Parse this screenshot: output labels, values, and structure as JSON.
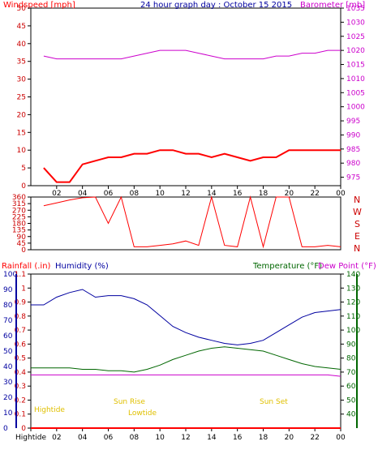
{
  "header": {
    "windspeed_label": "Windspeed [mph]",
    "title": "24 hour graph day : October 15 2015",
    "barometer_label": "Barometer [mb]"
  },
  "lower_header": {
    "rainfall_label": "Rainfall (.in)",
    "humidity_label": "Humidity (%)",
    "temperature_label": "Temperature (°F)",
    "dewpoint_label": "Dew Point (°F)"
  },
  "direction_letters": [
    "N",
    "W",
    "S",
    "E",
    "N"
  ],
  "annotations": {
    "hightide_label": "Hightide",
    "sunrise_label": "Sun Rise",
    "lowtide_label": "Lowtide",
    "sunset_label": "Sun Set"
  },
  "colors": {
    "windspeed": "#ff0000",
    "avg_wind": "#0000a0",
    "wind_low": "#008000",
    "barometer": "#cc00cc",
    "humidity": "#0000a0",
    "temperature": "#006600",
    "dewpoint": "#cc00cc",
    "rainfall": "#ff0000",
    "annotation": "#e0c000"
  },
  "chart_data": [
    {
      "type": "line",
      "name": "wind-barometer",
      "x_tick_labels": [
        "02",
        "04",
        "06",
        "08",
        "10",
        "12",
        "14",
        "16",
        "18",
        "20",
        "22",
        "00"
      ],
      "y_left_ticks": [
        0,
        5,
        10,
        15,
        20,
        25,
        30,
        35,
        40,
        45,
        50
      ],
      "y_right_ticks": [
        975,
        980,
        985,
        990,
        995,
        1000,
        1005,
        1010,
        1015,
        1020,
        1025,
        1030,
        1035
      ],
      "ylim_left": [
        0,
        50
      ],
      "ylim_right": [
        972,
        1035
      ],
      "x": [
        1,
        2,
        3,
        4,
        5,
        6,
        7,
        8,
        9,
        10,
        11,
        12,
        13,
        14,
        15,
        16,
        17,
        18,
        19,
        20,
        21,
        22,
        23,
        24
      ],
      "series": [
        {
          "name": "Windspeed",
          "axis": "left",
          "values": [
            5,
            1,
            1,
            6,
            7,
            8,
            8,
            9,
            9,
            10,
            10,
            9,
            9,
            8,
            9,
            8,
            7,
            8,
            8,
            10,
            10,
            10,
            10,
            10
          ]
        },
        {
          "name": "Barometer",
          "axis": "right",
          "values": [
            1018,
            1017,
            1017,
            1017,
            1017,
            1017,
            1017,
            1018,
            1019,
            1020,
            1020,
            1020,
            1019,
            1018,
            1017,
            1017,
            1017,
            1017,
            1018,
            1018,
            1019,
            1019,
            1020,
            1020
          ]
        }
      ]
    },
    {
      "type": "line",
      "name": "wind-direction",
      "y_left_ticks": [
        0,
        45,
        90,
        135,
        180,
        225,
        270,
        315,
        360
      ],
      "ylim": [
        0,
        360
      ],
      "x": [
        1,
        2,
        3,
        4,
        5,
        6,
        7,
        8,
        9,
        10,
        11,
        12,
        13,
        14,
        15,
        16,
        17,
        18,
        19,
        20,
        21,
        22,
        23,
        24
      ],
      "values": [
        300,
        320,
        340,
        355,
        360,
        180,
        360,
        20,
        20,
        30,
        40,
        60,
        30,
        360,
        30,
        20,
        360,
        20,
        360,
        360,
        20,
        20,
        30,
        20
      ]
    },
    {
      "type": "line",
      "name": "humidity-temperature",
      "x_tick_labels": [
        "Hightide",
        "02",
        "04",
        "06",
        "08",
        "10",
        "12",
        "14",
        "16",
        "18",
        "20",
        "22",
        "00"
      ],
      "humidity_ticks": [
        0,
        10,
        20,
        30,
        40,
        50,
        60,
        70,
        80,
        90,
        100
      ],
      "rain_ticks": [
        0,
        0.1,
        0.2,
        0.3,
        0.4,
        0.5,
        0.6,
        0.7,
        0.8,
        0.9,
        1,
        1.1
      ],
      "temp_ticks": [
        40,
        50,
        60,
        70,
        80,
        90,
        100,
        110,
        120,
        130,
        140
      ],
      "x": [
        0,
        1,
        2,
        3,
        4,
        5,
        6,
        7,
        8,
        9,
        10,
        11,
        12,
        13,
        14,
        15,
        16,
        17,
        18,
        19,
        20,
        21,
        22,
        23,
        24
      ],
      "series": [
        {
          "name": "Humidity",
          "axis": "humidity",
          "values": [
            80,
            80,
            85,
            88,
            90,
            85,
            86,
            86,
            84,
            80,
            73,
            66,
            62,
            59,
            57,
            55,
            54,
            55,
            57,
            62,
            67,
            72,
            75,
            76,
            77
          ]
        },
        {
          "name": "Temperature",
          "axis": "temp",
          "values": [
            73,
            73,
            73,
            73,
            72,
            72,
            71,
            71,
            70,
            72,
            75,
            79,
            82,
            85,
            87,
            88,
            87,
            86,
            85,
            82,
            79,
            76,
            74,
            73,
            72
          ]
        },
        {
          "name": "Dew Point",
          "axis": "temp",
          "values": [
            68,
            68,
            68,
            68,
            68,
            68,
            68,
            68,
            68,
            68,
            68,
            68,
            68,
            68,
            68,
            68,
            68,
            68,
            68,
            68,
            68,
            68,
            68,
            68,
            67
          ]
        },
        {
          "name": "Rainfall",
          "axis": "rain",
          "values": [
            0,
            0,
            0,
            0,
            0,
            0,
            0,
            0,
            0,
            0,
            0,
            0,
            0,
            0,
            0,
            0,
            0,
            0,
            0,
            0,
            0,
            0,
            0,
            0,
            0
          ]
        }
      ]
    }
  ]
}
